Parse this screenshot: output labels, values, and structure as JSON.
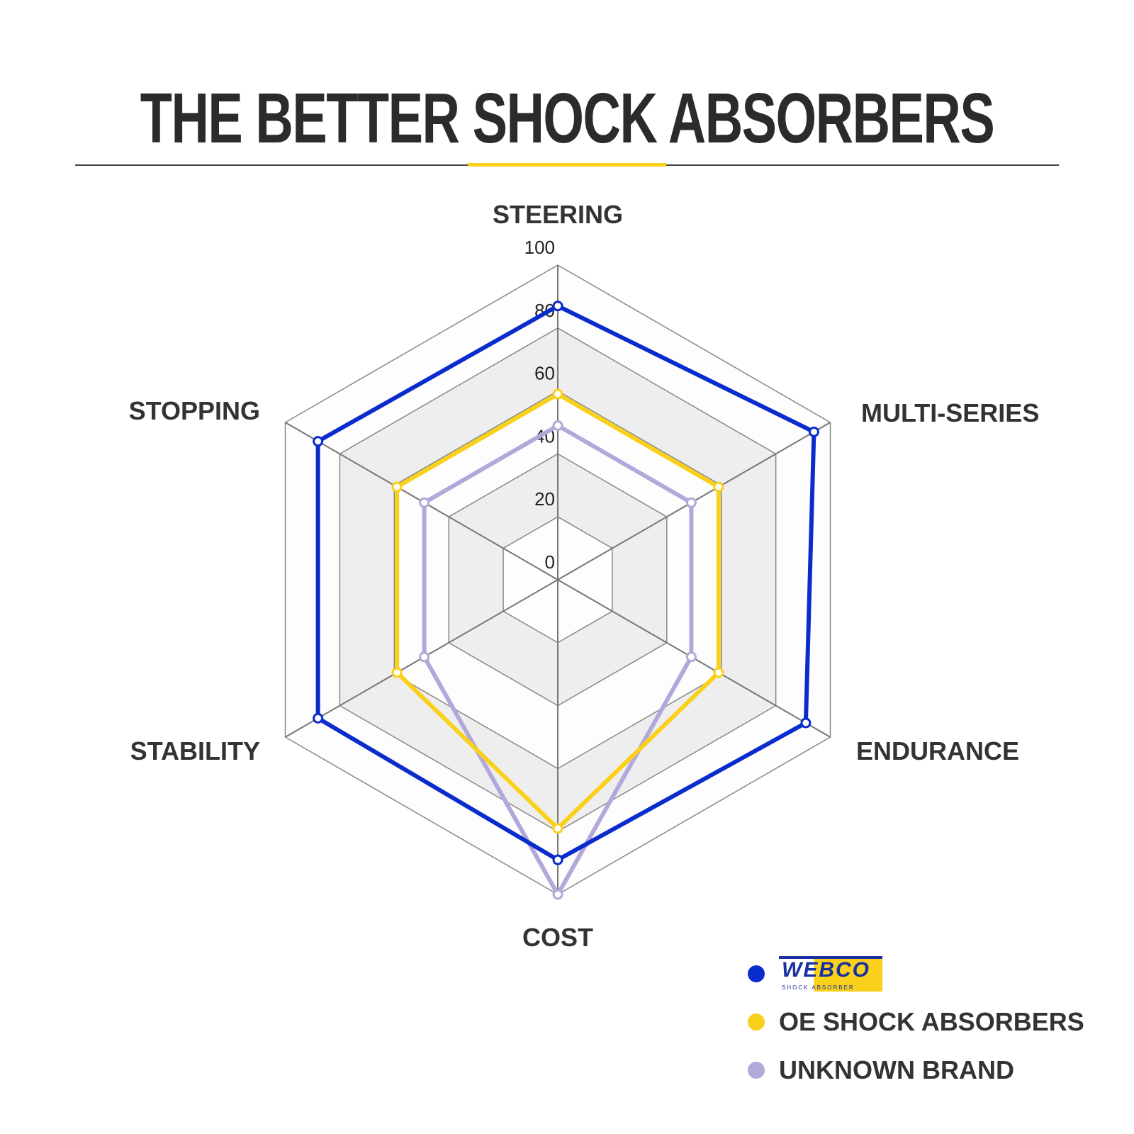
{
  "title": "THE BETTER SHOCK ABSORBERS",
  "chart_data": {
    "type": "radar",
    "title": "THE BETTER SHOCK ABSORBERS",
    "categories": [
      "STEERING",
      "MULTI-SERIES",
      "ENDURANCE",
      "COST",
      "STABILITY",
      "STOPPING"
    ],
    "rlim": [
      0,
      100
    ],
    "ticks": [
      "0",
      "20",
      "40",
      "60",
      "80",
      "100"
    ],
    "legend_position": "bottom-right",
    "series": [
      {
        "name": "WEBCO SHOCK ABSORBER",
        "color": "#0a2ccc",
        "values": [
          87,
          94,
          91,
          89,
          88,
          88
        ]
      },
      {
        "name": "OE SHOCK ABSORBERS",
        "color": "#f9d01a",
        "values": [
          59,
          59,
          59,
          79,
          59,
          59
        ]
      },
      {
        "name": "UNKNOWN BRAND",
        "color": "#b3a8da",
        "values": [
          49,
          49,
          49,
          100,
          49,
          49
        ]
      }
    ]
  },
  "legend": {
    "logo_text": "WEBCO",
    "logo_sub": "SHOCK ABSORBER",
    "items": [
      "OE SHOCK ABSORBERS",
      "UNKNOWN BRAND"
    ]
  }
}
